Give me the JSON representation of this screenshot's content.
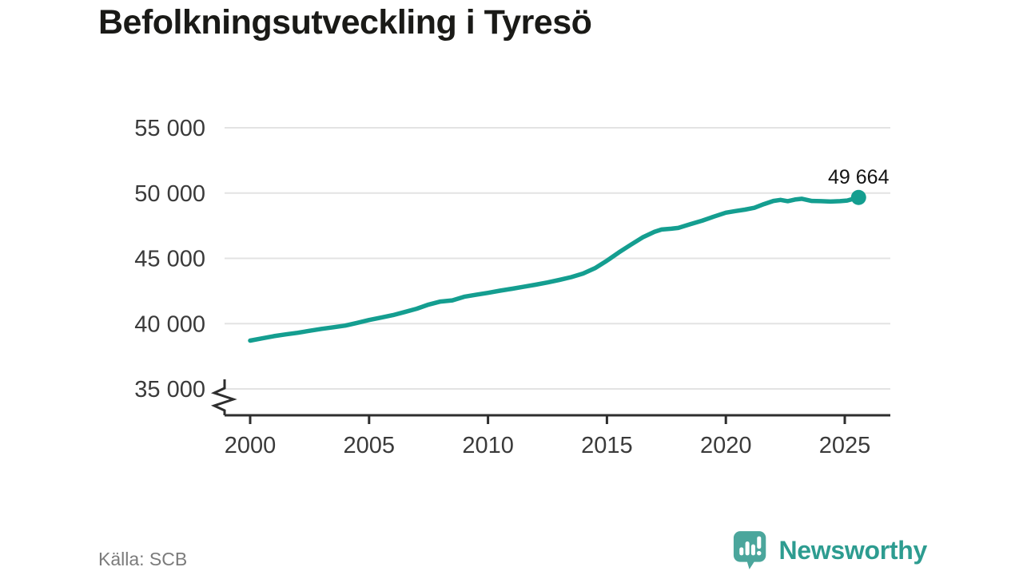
{
  "title": "Befolkningsutveckling i Tyresö",
  "footer": {
    "source": "Källa: SCB",
    "brand": "Newsworthy"
  },
  "colors": {
    "line": "#149e90",
    "marker": "#149e90",
    "grid": "#e3e3e3",
    "axis": "#2e2e2e",
    "tick_text": "#3a3a3a",
    "title_text": "#1a1a17",
    "end_label_text": "#141414",
    "source_text": "#7b7b7b",
    "logo_icon": "#4ba69c",
    "logo_text": "#2d9c90"
  },
  "chart_data": {
    "type": "line",
    "title": "Befolkningsutveckling i Tyresö",
    "xlabel": "",
    "ylabel": "",
    "grid": "horizontal",
    "legend": "none",
    "axis_break_below_ymin": true,
    "x_range": [
      2000,
      2025.6
    ],
    "y_display_range": [
      35000,
      55000
    ],
    "xticks": [
      "2000",
      "2005",
      "2010",
      "2015",
      "2020",
      "2025"
    ],
    "xtick_values": [
      2000,
      2005,
      2010,
      2015,
      2020,
      2025
    ],
    "yticks": [
      "35 000",
      "40 000",
      "45 000",
      "50 000",
      "55 000"
    ],
    "ytick_values": [
      35000,
      40000,
      45000,
      50000,
      55000
    ],
    "end_label": "49 664",
    "end_value": 49664,
    "series_x": [
      2000.0,
      2000.5,
      2001.0,
      2001.5,
      2002.0,
      2002.5,
      2003.0,
      2003.5,
      2004.0,
      2004.5,
      2005.0,
      2005.5,
      2006.0,
      2006.5,
      2007.0,
      2007.5,
      2008.0,
      2008.5,
      2009.0,
      2009.5,
      2010.0,
      2010.5,
      2011.0,
      2011.5,
      2012.0,
      2012.5,
      2013.0,
      2013.5,
      2014.0,
      2014.5,
      2015.0,
      2015.5,
      2016.0,
      2016.5,
      2017.0,
      2017.3,
      2017.7,
      2018.0,
      2018.5,
      2019.0,
      2019.5,
      2020.0,
      2020.4,
      2020.8,
      2021.2,
      2021.6,
      2022.0,
      2022.3,
      2022.6,
      2022.9,
      2023.2,
      2023.6,
      2024.0,
      2024.4,
      2024.8,
      2025.1,
      2025.58
    ],
    "series_values": [
      38700,
      38870,
      39040,
      39180,
      39300,
      39450,
      39600,
      39720,
      39850,
      40060,
      40280,
      40460,
      40650,
      40890,
      41140,
      41460,
      41690,
      41780,
      42060,
      42210,
      42360,
      42520,
      42670,
      42820,
      42980,
      43150,
      43350,
      43560,
      43840,
      44250,
      44820,
      45450,
      46040,
      46600,
      47030,
      47210,
      47270,
      47330,
      47610,
      47880,
      48200,
      48500,
      48620,
      48730,
      48870,
      49150,
      49400,
      49480,
      49380,
      49500,
      49560,
      49400,
      49380,
      49350,
      49380,
      49430,
      49664
    ]
  }
}
